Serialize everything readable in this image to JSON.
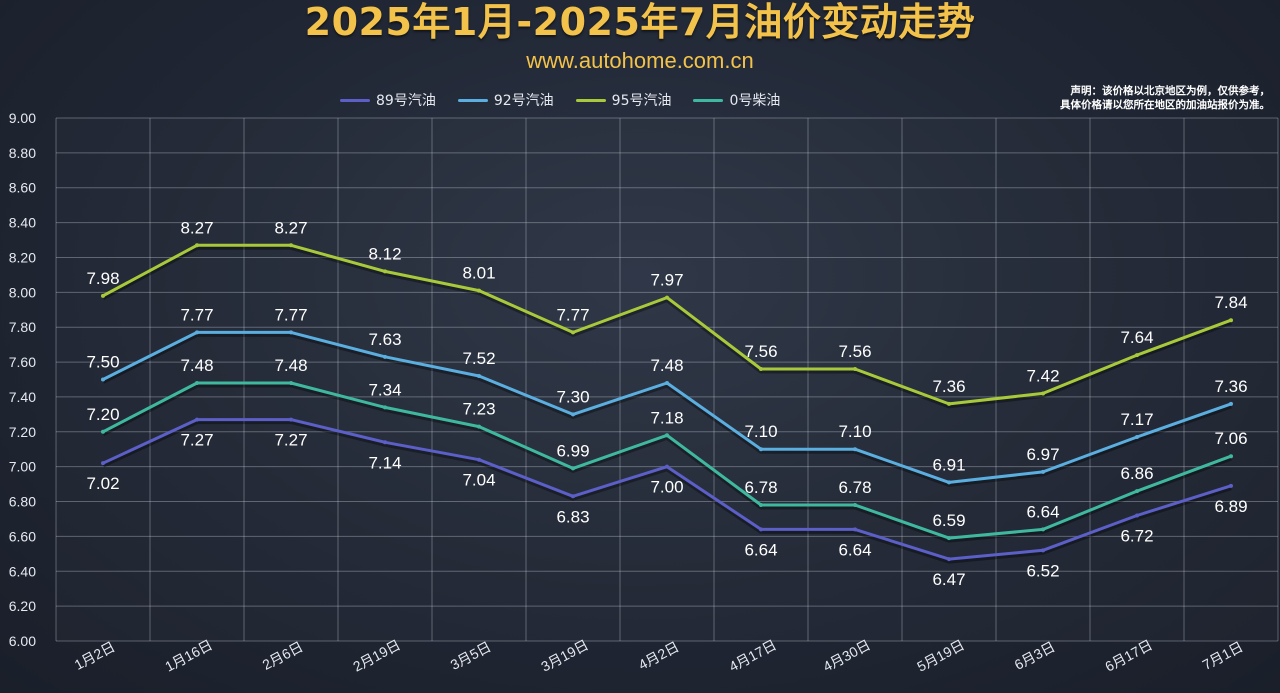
{
  "header": {
    "title": "2025年1月-2025年7月油价变动走势",
    "subtitle": "www.autohome.com.cn",
    "disclaimer_line1": "声明：该价格以北京地区为例，仅供参考，",
    "disclaimer_line2": "具体价格请以您所在地区的加油站报价为准。"
  },
  "chart_data": {
    "type": "line",
    "categories": [
      "1月2日",
      "1月16日",
      "2月6日",
      "2月19日",
      "3月5日",
      "3月19日",
      "4月2日",
      "4月17日",
      "4月30日",
      "5月19日",
      "6月3日",
      "6月17日",
      "7月1日"
    ],
    "ylim": [
      6.0,
      9.0
    ],
    "yticks": [
      "6.00",
      "6.20",
      "6.40",
      "6.60",
      "6.80",
      "7.00",
      "7.20",
      "7.40",
      "7.60",
      "7.80",
      "8.00",
      "8.20",
      "8.40",
      "8.60",
      "8.80",
      "9.00"
    ],
    "grid": true,
    "legend_position": "top",
    "series": [
      {
        "name": "89号汽油",
        "color": "#5b5fc7",
        "values": [
          7.02,
          7.27,
          7.27,
          7.14,
          7.04,
          6.83,
          7.0,
          6.64,
          6.64,
          6.47,
          6.52,
          6.72,
          6.89
        ]
      },
      {
        "name": "92号汽油",
        "color": "#5aaee0",
        "values": [
          7.5,
          7.77,
          7.77,
          7.63,
          7.52,
          7.3,
          7.48,
          7.1,
          7.1,
          6.91,
          6.97,
          7.17,
          7.36
        ]
      },
      {
        "name": "95号汽油",
        "color": "#a8c93a",
        "values": [
          7.98,
          8.27,
          8.27,
          8.12,
          8.01,
          7.77,
          7.97,
          7.56,
          7.56,
          7.36,
          7.42,
          7.64,
          7.84
        ]
      },
      {
        "name": "0号柴油",
        "color": "#3fb8a0",
        "values": [
          7.2,
          7.48,
          7.48,
          7.34,
          7.23,
          6.99,
          7.18,
          6.78,
          6.78,
          6.59,
          6.64,
          6.86,
          7.06
        ]
      }
    ],
    "data_labels": {
      "89号汽油": [
        "7.02",
        "7.27",
        "7.27",
        "7.14",
        "7.04",
        "6.83",
        "7.00",
        "6.64",
        "6.64",
        "6.47",
        "6.52",
        "6.72",
        "6.89"
      ],
      "92号汽油": [
        "7.50",
        "7.77",
        "7.77",
        "7.63",
        "7.52",
        "7.30",
        "7.48",
        "7.10",
        "7.10",
        "6.91",
        "6.97",
        "7.17",
        "7.36"
      ],
      "95号汽油": [
        "7.98",
        "8.27",
        "8.27",
        "8.12",
        "8.01",
        "7.77",
        "7.97",
        "7.56",
        "7.56",
        "7.36",
        "7.42",
        "7.64",
        "7.84"
      ],
      "0号柴油": [
        "7.20",
        "7.48",
        "7.48",
        "7.34",
        "7.23",
        "6.99",
        "7.18",
        "6.78",
        "6.78",
        "6.59",
        "6.64",
        "6.86",
        "7.06"
      ]
    }
  }
}
